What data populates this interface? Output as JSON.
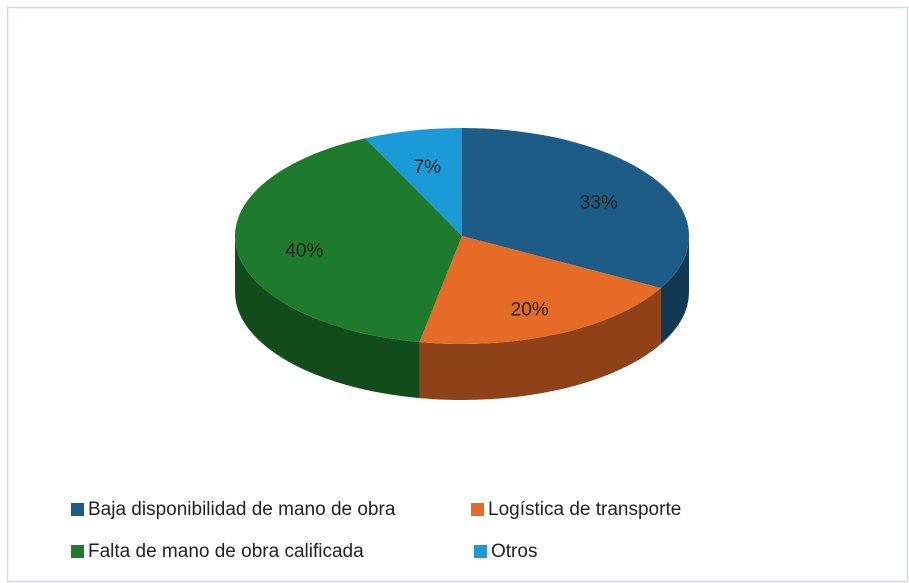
{
  "chart_data": {
    "type": "pie3d",
    "categories": [
      "Baja disponibilidad de mano de obra",
      "Logística de transporte",
      "Falta de mano de obra calificada",
      "Otros"
    ],
    "values": [
      33,
      20,
      40,
      7
    ],
    "value_labels": [
      "33%",
      "20%",
      "40%",
      "7%"
    ],
    "colors": [
      "#1c5c86",
      "#e66b27",
      "#1e7a2c",
      "#1a9ad6"
    ],
    "legend": "bottom"
  }
}
